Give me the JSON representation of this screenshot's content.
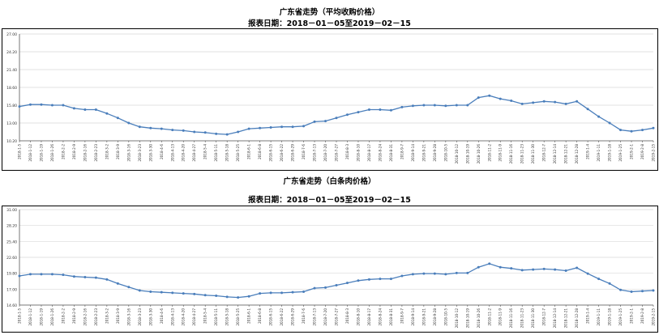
{
  "chart_data": [
    {
      "type": "line",
      "title": "广东省走势（平均收购价格）",
      "subtitle": "报表日期：2018－01－05至2019－02－15",
      "ylim": [
        10.2,
        27.0
      ],
      "yticks": [
        "27.00",
        "24.20",
        "21.40",
        "18.60",
        "15.80",
        "13.00",
        "10.20"
      ],
      "grid": true,
      "series_color": "#4a7ebb",
      "x": [
        "2018-1-5",
        "2018-1-12",
        "2018-1-19",
        "2018-1-26",
        "2018-2-2",
        "2018-2-9",
        "2018-2-16",
        "2018-2-23",
        "2018-3-2",
        "2018-3-9",
        "2018-3-16",
        "2018-3-23",
        "2018-3-30",
        "2018-4-6",
        "2018-4-13",
        "2018-4-20",
        "2018-4-27",
        "2018-5-4",
        "2018-5-11",
        "2018-5-18",
        "2018-5-25",
        "2018-6-1",
        "2018-6-8",
        "2018-6-15",
        "2018-6-22",
        "2018-6-29",
        "2018-7-6",
        "2018-7-13",
        "2018-7-20",
        "2018-7-27",
        "2018-8-3",
        "2018-8-10",
        "2018-8-17",
        "2018-8-24",
        "2018-8-31",
        "2018-9-7",
        "2018-9-14",
        "2018-9-21",
        "2018-9-28",
        "2018-10-5",
        "2018-10-12",
        "2018-10-19",
        "2018-10-26",
        "2018-11-2",
        "2018-11-9",
        "2018-11-16",
        "2018-11-23",
        "2018-11-30",
        "2018-12-7",
        "2018-12-14",
        "2018-12-21",
        "2018-12-28",
        "2019-1-4",
        "2019-1-11",
        "2019-1-18",
        "2019-1-25",
        "2019-2-1",
        "2019-2-8",
        "2019-2-15"
      ],
      "xtick_labels": [
        "2018-1-5",
        "2018-1-12",
        "2018-1-19",
        "2018-1-26",
        "2018-2-2",
        "2018-2-9",
        "2018-2-16",
        "2018-2-23",
        "2018-3-2",
        "2018-3-9",
        "2018-3-16",
        "2018-3-23",
        "2018-3-30",
        "2018-4-6",
        "2018-4-13",
        "2018-4-20",
        "2018-4-27",
        "2018-5-4",
        "2018-5-11",
        "2018-5-18",
        "2018-5-25",
        "2018-6-1",
        "2018-6-8",
        "2018-6-15",
        "2018-6-22",
        "2018-6-29",
        "2018-7-6",
        "2018-7-13",
        "2018-7-20",
        "2018-7-27",
        "2018-8-3",
        "2018-8-10",
        "2018-8-17",
        "2018-8-24",
        "2018-8-31",
        "2018-9-7",
        "2018-9-14",
        "2018-9-21",
        "2018-9-28",
        "2018-10-5",
        "2018-10-12",
        "2018-10-19",
        "2018-10-26",
        "2018-11-2",
        "2018-11-9",
        "2018-11-16",
        "2018-11-23",
        "2018-11-30",
        "2018-12-7",
        "2018-12-14",
        "2018-12-21",
        "2018-12-28",
        "2019-1-4",
        "2019-1-11",
        "2019-1-18",
        "2019-1-25",
        "2019-2-1",
        "2019-2-8",
        "2019-2-15"
      ],
      "values": [
        15.6,
        15.9,
        15.9,
        15.8,
        15.8,
        15.3,
        15.1,
        15.1,
        14.5,
        13.8,
        13.0,
        12.4,
        12.2,
        12.1,
        11.9,
        11.8,
        11.6,
        11.5,
        11.3,
        11.2,
        11.6,
        12.1,
        12.2,
        12.3,
        12.4,
        12.4,
        12.5,
        13.2,
        13.3,
        13.8,
        14.3,
        14.7,
        15.1,
        15.1,
        15.0,
        15.5,
        15.7,
        15.8,
        15.8,
        15.7,
        15.8,
        15.8,
        17.0,
        17.3,
        16.8,
        16.5,
        16.0,
        16.2,
        16.4,
        16.3,
        16.0,
        16.4,
        15.2,
        14.0,
        13.0,
        11.9,
        11.7,
        11.9,
        12.2
      ]
    },
    {
      "type": "line",
      "title": "广东省走势（白条肉价格）",
      "subtitle": "报表日期：2018－01－05至2019－02－15",
      "ylim": [
        14.6,
        31.0
      ],
      "yticks": [
        "31.00",
        "28.20",
        "25.40",
        "22.60",
        "19.80",
        "17.00",
        "14.60"
      ],
      "grid": true,
      "series_color": "#4a7ebb",
      "x": [
        "2018-1-5",
        "2018-1-12",
        "2018-1-19",
        "2018-1-26",
        "2018-2-2",
        "2018-2-9",
        "2018-2-16",
        "2018-2-23",
        "2018-3-2",
        "2018-3-9",
        "2018-3-16",
        "2018-3-23",
        "2018-3-30",
        "2018-4-6",
        "2018-4-13",
        "2018-4-20",
        "2018-4-27",
        "2018-5-4",
        "2018-5-11",
        "2018-5-18",
        "2018-5-25",
        "2018-6-1",
        "2018-6-8",
        "2018-6-15",
        "2018-6-22",
        "2018-6-29",
        "2018-7-6",
        "2018-7-13",
        "2018-7-20",
        "2018-7-27",
        "2018-8-3",
        "2018-8-10",
        "2018-8-17",
        "2018-8-24",
        "2018-8-31",
        "2018-9-7",
        "2018-9-14",
        "2018-9-21",
        "2018-9-28",
        "2018-10-5",
        "2018-10-12",
        "2018-10-19",
        "2018-10-26",
        "2018-11-2",
        "2018-11-9",
        "2018-11-16",
        "2018-11-23",
        "2018-11-30",
        "2018-12-7",
        "2018-12-14",
        "2018-12-21",
        "2018-12-28",
        "2019-1-4",
        "2019-1-11",
        "2019-1-18",
        "2019-1-25",
        "2019-2-1",
        "2019-2-8",
        "2019-2-15"
      ],
      "xtick_labels": [
        "2018-1-5",
        "2018-1-12",
        "2018-1-19",
        "2018-1-26",
        "2018-2-2",
        "2018-2-9",
        "2018-2-16",
        "2018-2-23",
        "2018-3-2",
        "2018-3-9",
        "2018-3-16",
        "2018-3-23",
        "2018-3-30",
        "2018-4-6",
        "2018-4-13",
        "2018-4-20",
        "2018-4-27",
        "2018-5-4",
        "2018-5-11",
        "2018-5-18",
        "2018-5-25",
        "2018-6-1",
        "2018-6-8",
        "2018-6-15",
        "2018-6-22",
        "2018-6-29",
        "2018-7-6",
        "2018-7-13",
        "2018-7-20",
        "2018-7-27",
        "2018-8-3",
        "2018-8-10",
        "2018-8-17",
        "2018-8-24",
        "2018-8-31",
        "2018-9-7",
        "2018-9-14",
        "2018-9-21",
        "2018-9-28",
        "2018-10-5",
        "2018-10-12",
        "2018-10-19",
        "2018-10-26",
        "2018-11-2",
        "2018-11-9",
        "2018-11-16",
        "2018-11-23",
        "2018-11-30",
        "2018-12-7",
        "2018-12-14",
        "2018-12-21",
        "2018-12-28",
        "2019-1-4",
        "2019-1-11",
        "2019-1-18",
        "2019-1-25",
        "2019-2-1",
        "2019-2-8",
        "2019-2-15"
      ],
      "values": [
        19.6,
        19.9,
        19.9,
        19.9,
        19.8,
        19.5,
        19.4,
        19.3,
        19.0,
        18.3,
        17.7,
        17.1,
        16.9,
        16.8,
        16.7,
        16.6,
        16.5,
        16.3,
        16.2,
        16.0,
        15.9,
        16.1,
        16.6,
        16.7,
        16.7,
        16.8,
        16.9,
        17.5,
        17.6,
        18.0,
        18.4,
        18.8,
        19.0,
        19.1,
        19.1,
        19.6,
        19.9,
        20.0,
        20.0,
        19.9,
        20.1,
        20.1,
        21.1,
        21.7,
        21.1,
        20.9,
        20.6,
        20.7,
        20.8,
        20.7,
        20.5,
        21.0,
        20.0,
        19.1,
        18.3,
        17.2,
        16.9,
        17.0,
        17.1
      ]
    }
  ]
}
